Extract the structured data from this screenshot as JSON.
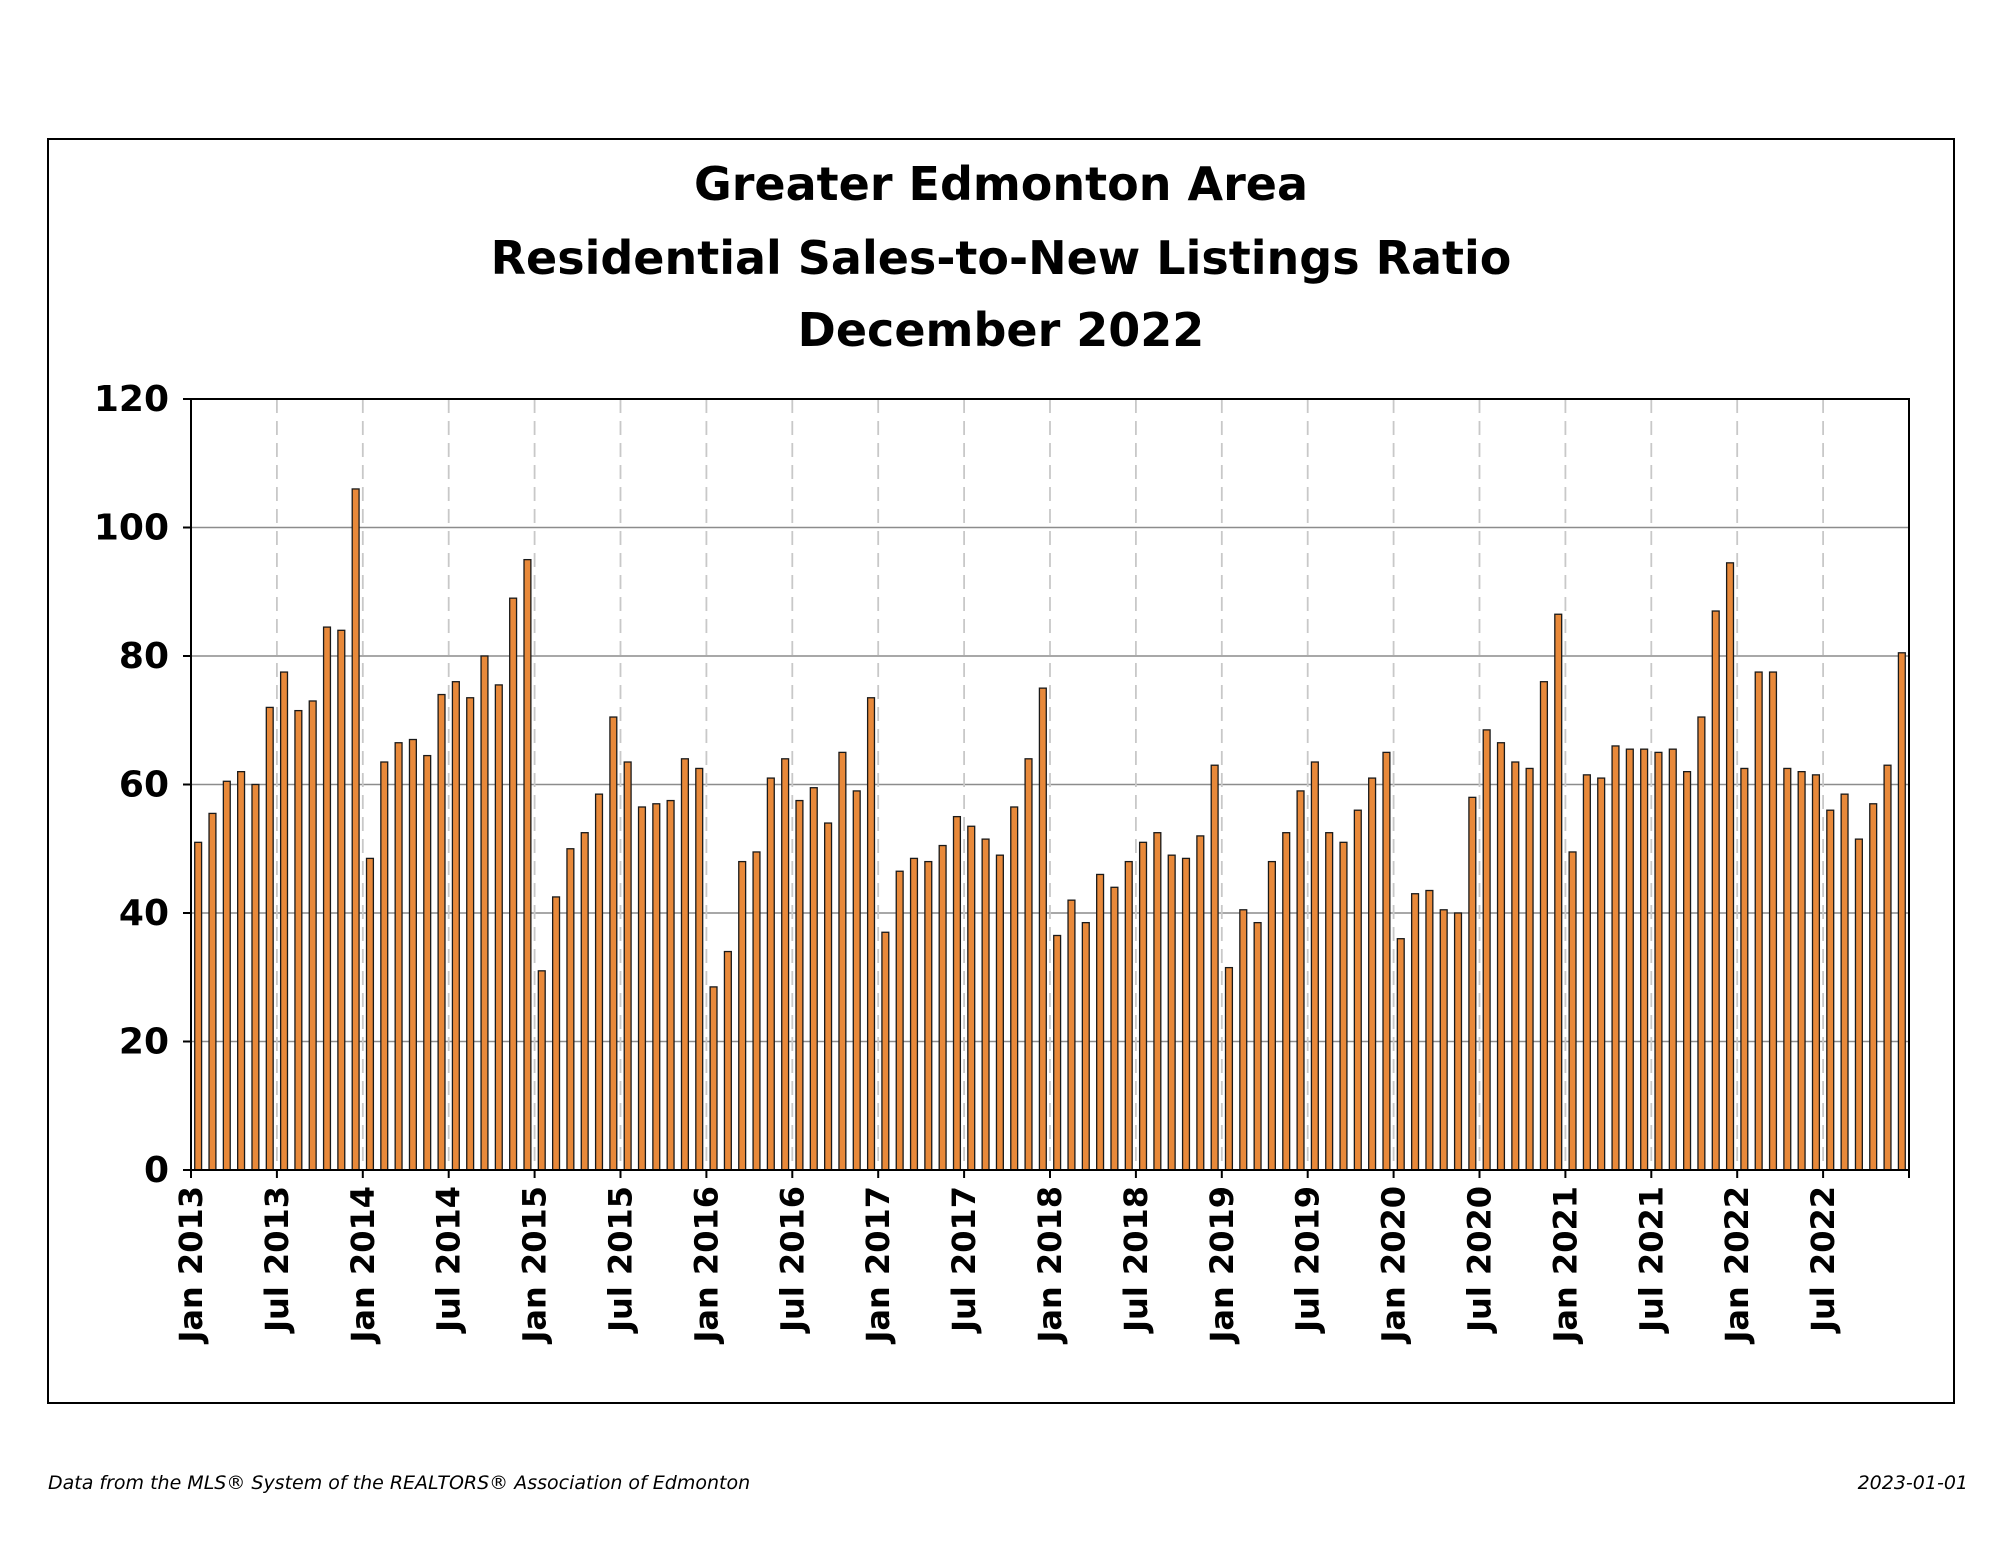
{
  "chart_data": {
    "type": "bar",
    "title_lines": [
      "Greater Edmonton Area",
      "Residential Sales-to-New Listings Ratio",
      "December 2022"
    ],
    "ylim": [
      0,
      120
    ],
    "yticks": [
      0,
      20,
      40,
      60,
      80,
      100,
      120
    ],
    "grid": true,
    "bar_color": "#e8893a",
    "tick_labels": [
      "Jan 2013",
      "Jul 2013",
      "Jan 2014",
      "Jul 2014",
      "Jan 2015",
      "Jul 2015",
      "Jan 2016",
      "Jul 2016",
      "Jan 2017",
      "Jul 2017",
      "Jan 2018",
      "Jul 2018",
      "Jan 2019",
      "Jul 2019",
      "Jan 2020",
      "Jul 2020",
      "Jan 2021",
      "Jul 2021",
      "Jan 2022",
      "Jul 2022"
    ],
    "start_month": "Jan 2013",
    "values": [
      51,
      55.5,
      60.5,
      62,
      60,
      72,
      77.5,
      71.5,
      73,
      84.5,
      84,
      106,
      48.5,
      63.5,
      66.5,
      67,
      64.5,
      74,
      76,
      73.5,
      80,
      75.5,
      89,
      95,
      31,
      42.5,
      50,
      52.5,
      58.5,
      70.5,
      63.5,
      56.5,
      57,
      57.5,
      64,
      62.5,
      28.5,
      34,
      48,
      49.5,
      61,
      64,
      57.5,
      59.5,
      54,
      65,
      59,
      73.5,
      37,
      46.5,
      48.5,
      48,
      50.5,
      55,
      53.5,
      51.5,
      49,
      56.5,
      64,
      75,
      36.5,
      42,
      38.5,
      46,
      44,
      48,
      51,
      52.5,
      49,
      48.5,
      52,
      63,
      31.5,
      40.5,
      38.5,
      48,
      52.5,
      59,
      63.5,
      52.5,
      51,
      56,
      61,
      65,
      36,
      43,
      43.5,
      40.5,
      40,
      58,
      68.5,
      66.5,
      63.5,
      62.5,
      76,
      86.5,
      49.5,
      61.5,
      61,
      66,
      65.5,
      65.5,
      65,
      65.5,
      62,
      70.5,
      87,
      94.5,
      62.5,
      77.5,
      77.5,
      62.5,
      62,
      61.5,
      56,
      58.5,
      51.5,
      57,
      63,
      80.5
    ]
  },
  "footer": {
    "source": "Data from the MLS® System of the REALTORS® Association of Edmonton",
    "date": "2023-01-01"
  }
}
